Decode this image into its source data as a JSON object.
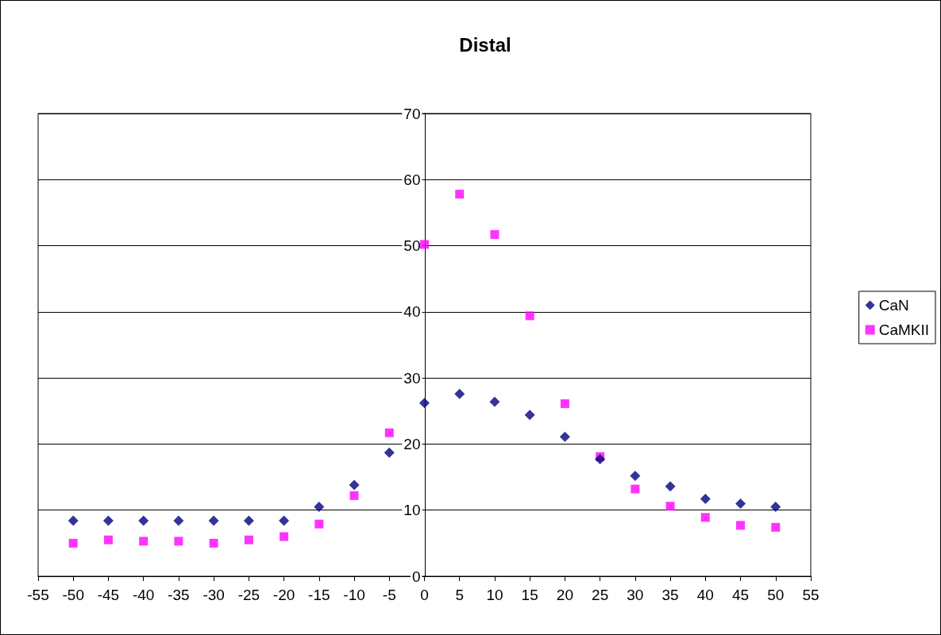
{
  "chart_data": {
    "type": "scatter",
    "title": "Distal",
    "x": [
      -50,
      -45,
      -40,
      -35,
      -30,
      -25,
      -20,
      -15,
      -10,
      -5,
      0,
      5,
      10,
      15,
      20,
      25,
      30,
      35,
      40,
      45,
      50
    ],
    "series": [
      {
        "name": "CaN",
        "color": "#000080",
        "marker": "diamond",
        "values": [
          8.4,
          8.4,
          8.4,
          8.4,
          8.4,
          8.4,
          8.4,
          10.5,
          13.8,
          18.7,
          26.2,
          27.6,
          26.4,
          24.4,
          21.1,
          17.7,
          15.2,
          13.6,
          11.7,
          11.0,
          10.5
        ]
      },
      {
        "name": "CaMKII",
        "color": "#ff00ff",
        "marker": "square",
        "values": [
          5.0,
          5.5,
          5.3,
          5.3,
          5.0,
          5.5,
          6.0,
          7.9,
          12.2,
          21.7,
          50.2,
          57.8,
          51.7,
          39.4,
          26.1,
          18.1,
          13.2,
          10.6,
          8.9,
          7.7,
          7.4
        ]
      }
    ],
    "xlim": [
      -55,
      55
    ],
    "xticks": [
      -55,
      -50,
      -45,
      -40,
      -35,
      -30,
      -25,
      -20,
      -15,
      -10,
      -5,
      0,
      5,
      10,
      15,
      20,
      25,
      30,
      35,
      40,
      45,
      50,
      55
    ],
    "ylim": [
      0,
      70
    ],
    "yticks": [
      0,
      10,
      20,
      30,
      40,
      50,
      60,
      70
    ],
    "grid": "y",
    "legend": "right"
  }
}
